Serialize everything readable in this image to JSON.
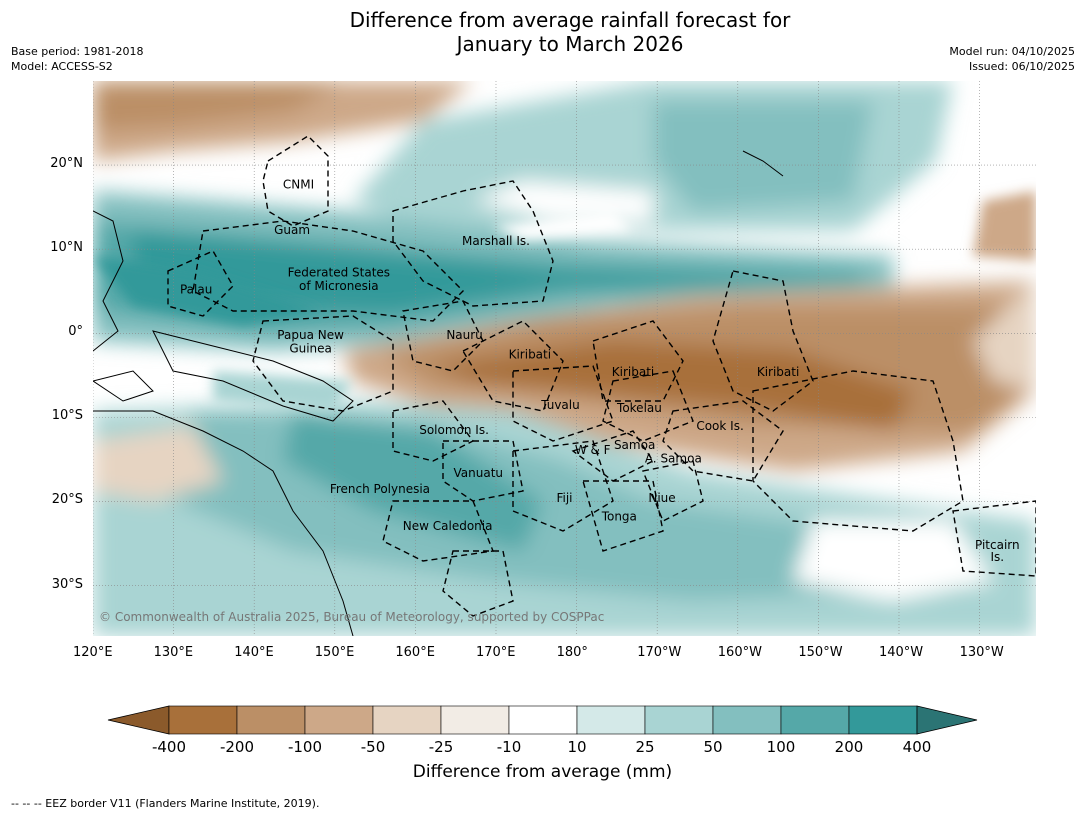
{
  "title": {
    "line1": "Difference from average rainfall forecast for",
    "line2": "January to March 2026"
  },
  "meta": {
    "base_period": "Base period: 1981-2018",
    "model": "Model: ACCESS-S2",
    "model_run": "Model run: 04/10/2025",
    "issued": "Issued: 06/10/2025"
  },
  "map": {
    "lon_range": [
      120,
      237
    ],
    "lat_range": [
      -36,
      30
    ],
    "lon_ticks": [
      "120°E",
      "130°E",
      "140°E",
      "150°E",
      "160°E",
      "170°E",
      "180°",
      "170°W",
      "160°W",
      "150°W",
      "140°W",
      "130°W"
    ],
    "lat_ticks": [
      "20°N",
      "10°N",
      "0°",
      "10°S",
      "20°S",
      "30°S"
    ],
    "places": [
      {
        "name": "CNMI",
        "lon": 145.5,
        "lat": 17.7
      },
      {
        "name": "Guam",
        "lon": 144.7,
        "lat": 12.3
      },
      {
        "name": "Marshall Is.",
        "lon": 170,
        "lat": 11
      },
      {
        "name": "Federated States",
        "lon": 150.5,
        "lat": 7.2
      },
      {
        "name": "of Micronesia",
        "lon": 150.5,
        "lat": 5.6
      },
      {
        "name": "Palau",
        "lon": 132.8,
        "lat": 5.2
      },
      {
        "name": "Papua New",
        "lon": 147,
        "lat": -0.2
      },
      {
        "name": "Guinea",
        "lon": 147,
        "lat": -1.8
      },
      {
        "name": "Nauru",
        "lon": 166.1,
        "lat": -0.2
      },
      {
        "name": "Kiribati",
        "lon": 174.2,
        "lat": -2.5
      },
      {
        "name": "Kiribati",
        "lon": 187,
        "lat": -4.6
      },
      {
        "name": "Kiribati",
        "lon": 205,
        "lat": -4.6
      },
      {
        "name": "Tuvalu",
        "lon": 178,
        "lat": -8.5
      },
      {
        "name": "Tokelau",
        "lon": 187.8,
        "lat": -8.9
      },
      {
        "name": "Cook Is.",
        "lon": 197.8,
        "lat": -11
      },
      {
        "name": "Solomon Is.",
        "lon": 164.8,
        "lat": -11.5
      },
      {
        "name": "W & F",
        "lon": 182,
        "lat": -13.9
      },
      {
        "name": "Samoa",
        "lon": 187.2,
        "lat": -13.3
      },
      {
        "name": "A. Samoa",
        "lon": 192,
        "lat": -14.9
      },
      {
        "name": "Vanuatu",
        "lon": 167.8,
        "lat": -16.6
      },
      {
        "name": "French Polynesia",
        "lon": 155.6,
        "lat": -18.5
      },
      {
        "name": "Fiji",
        "lon": 178.5,
        "lat": -19.6
      },
      {
        "name": "Niue",
        "lon": 190.6,
        "lat": -19.6
      },
      {
        "name": "Tonga",
        "lon": 185.3,
        "lat": -21.8
      },
      {
        "name": "New Caledonia",
        "lon": 164,
        "lat": -22.9
      },
      {
        "name": "Pitcairn",
        "lon": 232.2,
        "lat": -25.2
      },
      {
        "name": "Is.",
        "lon": 232.2,
        "lat": -26.6
      }
    ],
    "copyright": "© Commonwealth of Australia 2025, Bureau of Meteorology, supported by COSPPac"
  },
  "colorbar": {
    "labels": [
      "-400",
      "-200",
      "-100",
      "-50",
      "-25",
      "-10",
      "10",
      "25",
      "50",
      "100",
      "200",
      "400"
    ],
    "colors": [
      "#8b5a2b",
      "#a8703a",
      "#bb8f66",
      "#cda888",
      "#e6d4c2",
      "#f2ece5",
      "#ffffff",
      "#d4e9e8",
      "#a9d4d3",
      "#83bfbf",
      "#55a8a8",
      "#33999a",
      "#2b7474"
    ],
    "title": "Difference from average (mm)"
  },
  "footnote": "--  --  -- EEZ border V11 (Flanders Marine Institute, 2019)."
}
